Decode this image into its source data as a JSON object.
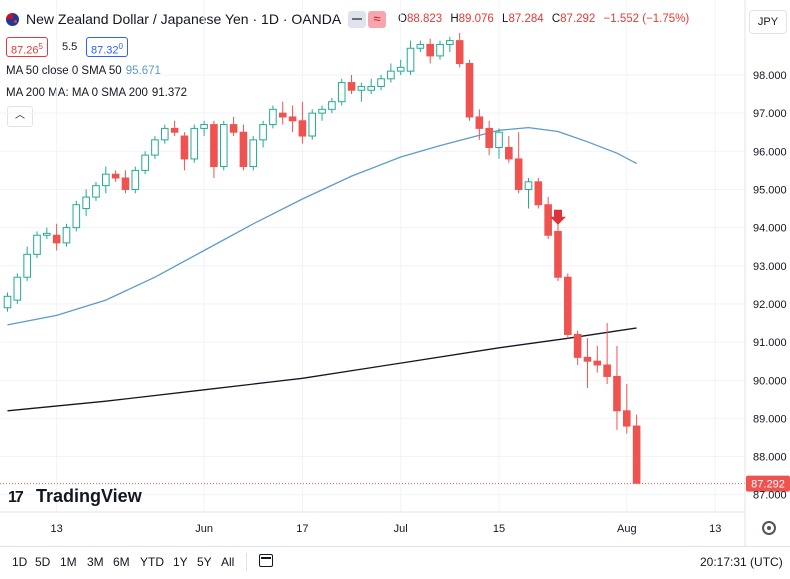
{
  "header": {
    "title": "New Zealand Dollar / Japanese Yen · 1D · OANDA",
    "ohlc": {
      "o_label": "O",
      "o": "88.823",
      "h_label": "H",
      "h": "89.076",
      "l_label": "L",
      "l": "87.284",
      "c_label": "C",
      "c": "87.292",
      "change": "−1.552 (−1.75%)"
    },
    "currency_button": "JPY",
    "eye_icon": "eye-icon",
    "wave_icon": "wave-icon"
  },
  "quote": {
    "bid": "87.265",
    "bid_main": "87.26",
    "bid_sup": "5",
    "spread": "5.5",
    "ask": "87.320",
    "ask_main": "87.32",
    "ask_sup": "0"
  },
  "indicators": {
    "ma50": {
      "label": "MA 50 close 0 SMA 50",
      "value": "95.671",
      "color": "#5b9cc9"
    },
    "ma200": {
      "label": "MA 200 MA: MA 0 SMA 200",
      "value": "91.372",
      "color": "#131722"
    }
  },
  "logo": {
    "mark": "17",
    "text": "TradingView"
  },
  "range_buttons": [
    "1D",
    "5D",
    "1M",
    "3M",
    "6M",
    "YTD",
    "1Y",
    "5Y",
    "All"
  ],
  "clock": "20:17:31 (UTC)",
  "colors": {
    "up": "#22ab94",
    "down": "#ef5350",
    "grid": "#f0f3fa"
  },
  "chart_data": {
    "type": "candlestick",
    "y_ticks": [
      87,
      88,
      89,
      90,
      91,
      92,
      93,
      94,
      95,
      96,
      97,
      98
    ],
    "y_tick_labels": [
      "87.000",
      "88.000",
      "89.000",
      "90.000",
      "91.000",
      "92.000",
      "93.000",
      "94.000",
      "95.000",
      "96.000",
      "97.000",
      "98.000"
    ],
    "ylim": [
      86.6,
      99.1
    ],
    "x_ticks": [
      {
        "label": "13",
        "i": 5
      },
      {
        "label": "Jun",
        "i": 20
      },
      {
        "label": "17",
        "i": 30
      },
      {
        "label": "Jul",
        "i": 40
      },
      {
        "label": "15",
        "i": 50
      },
      {
        "label": "Aug",
        "i": 63
      },
      {
        "label": "13",
        "i": 72
      }
    ],
    "last_price": 87.292,
    "last_price_label": "87.292",
    "candles": [
      [
        91.9,
        92.3,
        91.8,
        92.2
      ],
      [
        92.1,
        92.8,
        92.0,
        92.7
      ],
      [
        92.7,
        93.5,
        92.6,
        93.3
      ],
      [
        93.3,
        93.9,
        93.2,
        93.8
      ],
      [
        93.8,
        94.0,
        93.7,
        93.85
      ],
      [
        93.8,
        94.1,
        93.4,
        93.6
      ],
      [
        93.6,
        94.1,
        93.5,
        94.0
      ],
      [
        94.0,
        94.7,
        93.9,
        94.6
      ],
      [
        94.5,
        95.0,
        94.3,
        94.8
      ],
      [
        94.8,
        95.2,
        94.7,
        95.1
      ],
      [
        95.1,
        95.6,
        94.9,
        95.4
      ],
      [
        95.4,
        95.5,
        95.2,
        95.3
      ],
      [
        95.3,
        95.5,
        94.9,
        95.0
      ],
      [
        95.0,
        95.6,
        94.9,
        95.5
      ],
      [
        95.5,
        96.0,
        95.4,
        95.9
      ],
      [
        95.9,
        96.4,
        95.8,
        96.3
      ],
      [
        96.3,
        96.7,
        96.2,
        96.6
      ],
      [
        96.6,
        96.8,
        96.4,
        96.5
      ],
      [
        96.4,
        96.5,
        95.5,
        95.8
      ],
      [
        95.8,
        96.7,
        95.7,
        96.6
      ],
      [
        96.6,
        96.8,
        96.4,
        96.7
      ],
      [
        96.7,
        96.8,
        95.3,
        95.6
      ],
      [
        95.6,
        96.8,
        95.5,
        96.7
      ],
      [
        96.7,
        96.9,
        96.4,
        96.5
      ],
      [
        96.5,
        96.7,
        95.5,
        95.6
      ],
      [
        95.6,
        96.4,
        95.5,
        96.3
      ],
      [
        96.3,
        96.8,
        96.1,
        96.7
      ],
      [
        96.7,
        97.2,
        96.6,
        97.1
      ],
      [
        97.0,
        97.3,
        96.7,
        96.9
      ],
      [
        96.9,
        97.2,
        96.5,
        96.8
      ],
      [
        96.8,
        97.3,
        96.2,
        96.4
      ],
      [
        96.4,
        97.1,
        96.3,
        97.0
      ],
      [
        97.0,
        97.2,
        96.8,
        97.1
      ],
      [
        97.1,
        97.4,
        97.0,
        97.3
      ],
      [
        97.3,
        97.9,
        97.2,
        97.8
      ],
      [
        97.8,
        98.0,
        97.5,
        97.6
      ],
      [
        97.6,
        97.8,
        97.3,
        97.7
      ],
      [
        97.6,
        97.9,
        97.5,
        97.7
      ],
      [
        97.7,
        98.0,
        97.6,
        97.9
      ],
      [
        97.9,
        98.3,
        97.8,
        98.1
      ],
      [
        98.1,
        98.4,
        98.0,
        98.2
      ],
      [
        98.1,
        98.9,
        98.0,
        98.7
      ],
      [
        98.7,
        98.9,
        98.6,
        98.8
      ],
      [
        98.8,
        98.95,
        98.3,
        98.5
      ],
      [
        98.5,
        98.9,
        98.4,
        98.8
      ],
      [
        98.8,
        99.0,
        98.6,
        98.9
      ],
      [
        98.9,
        99.1,
        98.2,
        98.3
      ],
      [
        98.3,
        98.4,
        96.8,
        96.9
      ],
      [
        96.9,
        97.1,
        96.3,
        96.6
      ],
      [
        96.6,
        96.8,
        95.9,
        96.1
      ],
      [
        96.1,
        96.6,
        95.8,
        96.5
      ],
      [
        96.1,
        96.4,
        95.7,
        95.8
      ],
      [
        95.8,
        96.5,
        94.9,
        95.0
      ],
      [
        95.0,
        95.3,
        94.5,
        95.2
      ],
      [
        95.2,
        95.3,
        94.5,
        94.6
      ],
      [
        94.6,
        94.8,
        93.7,
        93.8
      ],
      [
        93.9,
        94.1,
        92.6,
        92.7
      ],
      [
        92.7,
        92.8,
        91.1,
        91.2
      ],
      [
        91.2,
        91.3,
        90.4,
        90.6
      ],
      [
        90.6,
        91.1,
        89.8,
        90.5
      ],
      [
        90.5,
        90.9,
        90.2,
        90.4
      ],
      [
        90.4,
        91.5,
        89.9,
        90.1
      ],
      [
        90.1,
        90.9,
        88.7,
        89.2
      ],
      [
        89.2,
        89.9,
        88.6,
        88.8
      ],
      [
        88.8,
        89.1,
        87.28,
        87.3
      ]
    ],
    "ma50_points": [
      [
        0,
        91.45
      ],
      [
        5,
        91.7
      ],
      [
        10,
        92.1
      ],
      [
        15,
        92.7
      ],
      [
        20,
        93.4
      ],
      [
        25,
        94.1
      ],
      [
        30,
        94.75
      ],
      [
        35,
        95.35
      ],
      [
        40,
        95.85
      ],
      [
        44,
        96.15
      ],
      [
        47,
        96.35
      ],
      [
        50,
        96.55
      ],
      [
        53,
        96.62
      ],
      [
        56,
        96.52
      ],
      [
        59,
        96.25
      ],
      [
        62,
        95.95
      ],
      [
        64,
        95.68
      ]
    ],
    "ma200_points": [
      [
        0,
        89.2
      ],
      [
        10,
        89.45
      ],
      [
        20,
        89.75
      ],
      [
        30,
        90.05
      ],
      [
        40,
        90.45
      ],
      [
        50,
        90.85
      ],
      [
        57,
        91.1
      ],
      [
        64,
        91.37
      ]
    ],
    "signal_arrow_index": 56
  }
}
